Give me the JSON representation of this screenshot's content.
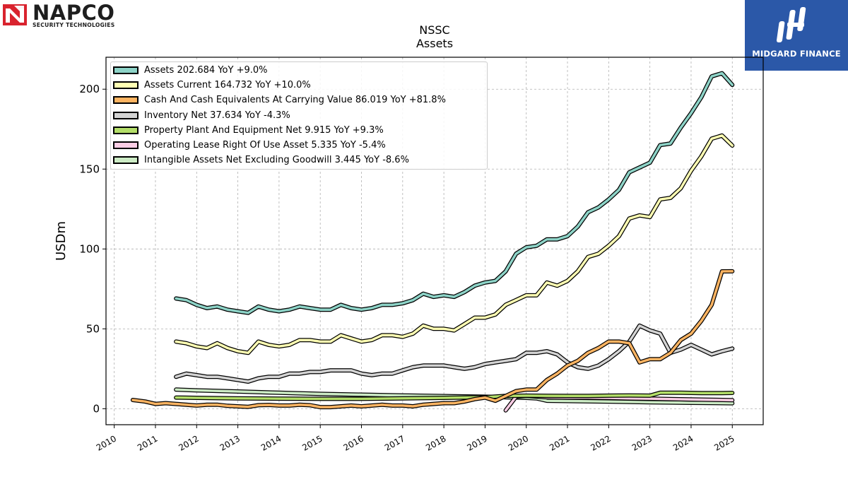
{
  "brand": {
    "name": "NAPCO",
    "subtitle": "SECURITY TECHNOLOGIES",
    "accent": "#d9232e"
  },
  "watermark": {
    "text": "MIDGARD FINANCE",
    "background": "#2b58a8"
  },
  "chart_data": {
    "type": "line",
    "title": "NSSC",
    "subtitle": "Assets",
    "xlabel": "",
    "ylabel": "USDm",
    "xlim": [
      2009.8,
      2025.75
    ],
    "ylim": [
      -10,
      220
    ],
    "xticks": [
      2010,
      2011,
      2012,
      2013,
      2014,
      2015,
      2016,
      2017,
      2018,
      2019,
      2020,
      2021,
      2022,
      2023,
      2024,
      2025
    ],
    "xtick_labels": [
      "2010",
      "2011",
      "2012",
      "2013",
      "2014",
      "2015",
      "2016",
      "2017",
      "2018",
      "2019",
      "2020",
      "2021",
      "2022",
      "2023",
      "2024",
      "2025"
    ],
    "yticks": [
      0,
      50,
      100,
      150,
      200
    ],
    "ytick_labels": [
      "0",
      "50",
      "100",
      "150",
      "200"
    ],
    "grid": true,
    "legend_position": "top-left",
    "series": [
      {
        "name": "Assets",
        "legend": "Assets  202.684 YoY +9.0%",
        "color": "#8dd3c7",
        "points": [
          [
            2011.5,
            69
          ],
          [
            2011.75,
            68
          ],
          [
            2012.0,
            65
          ],
          [
            2012.25,
            63
          ],
          [
            2012.5,
            64
          ],
          [
            2012.75,
            62
          ],
          [
            2013.0,
            61
          ],
          [
            2013.25,
            60
          ],
          [
            2013.5,
            64
          ],
          [
            2013.75,
            62
          ],
          [
            2014.0,
            61
          ],
          [
            2014.25,
            62
          ],
          [
            2014.5,
            64
          ],
          [
            2014.75,
            63
          ],
          [
            2015.0,
            62
          ],
          [
            2015.25,
            62
          ],
          [
            2015.5,
            65
          ],
          [
            2015.75,
            63
          ],
          [
            2016.0,
            62
          ],
          [
            2016.25,
            63
          ],
          [
            2016.5,
            65
          ],
          [
            2016.75,
            65
          ],
          [
            2017.0,
            66
          ],
          [
            2017.25,
            68
          ],
          [
            2017.5,
            72
          ],
          [
            2017.75,
            70
          ],
          [
            2018.0,
            71
          ],
          [
            2018.25,
            70
          ],
          [
            2018.5,
            73
          ],
          [
            2018.75,
            77
          ],
          [
            2019.0,
            79
          ],
          [
            2019.25,
            80
          ],
          [
            2019.5,
            86
          ],
          [
            2019.75,
            97
          ],
          [
            2020.0,
            101
          ],
          [
            2020.25,
            102
          ],
          [
            2020.5,
            106
          ],
          [
            2020.75,
            106
          ],
          [
            2021.0,
            108
          ],
          [
            2021.25,
            114
          ],
          [
            2021.5,
            123
          ],
          [
            2021.75,
            126
          ],
          [
            2022.0,
            131
          ],
          [
            2022.25,
            137
          ],
          [
            2022.5,
            148
          ],
          [
            2022.75,
            151
          ],
          [
            2023.0,
            154
          ],
          [
            2023.25,
            165
          ],
          [
            2023.5,
            166
          ],
          [
            2023.75,
            176
          ],
          [
            2024.0,
            185
          ],
          [
            2024.25,
            195
          ],
          [
            2024.5,
            208
          ],
          [
            2024.75,
            210
          ],
          [
            2025.0,
            202.684
          ]
        ]
      },
      {
        "name": "Assets Current",
        "legend": "Assets Current  164.732 YoY +10.0%",
        "color": "#ffffb3",
        "points": [
          [
            2011.5,
            42
          ],
          [
            2011.75,
            41
          ],
          [
            2012.0,
            39
          ],
          [
            2012.25,
            38
          ],
          [
            2012.5,
            41
          ],
          [
            2012.75,
            38
          ],
          [
            2013.0,
            36
          ],
          [
            2013.25,
            35
          ],
          [
            2013.5,
            42
          ],
          [
            2013.75,
            40
          ],
          [
            2014.0,
            39
          ],
          [
            2014.25,
            40
          ],
          [
            2014.5,
            43
          ],
          [
            2014.75,
            43
          ],
          [
            2015.0,
            42
          ],
          [
            2015.25,
            42
          ],
          [
            2015.5,
            46
          ],
          [
            2015.75,
            44
          ],
          [
            2016.0,
            42
          ],
          [
            2016.25,
            43
          ],
          [
            2016.5,
            46
          ],
          [
            2016.75,
            46
          ],
          [
            2017.0,
            45
          ],
          [
            2017.25,
            47
          ],
          [
            2017.5,
            52
          ],
          [
            2017.75,
            50
          ],
          [
            2018.0,
            50
          ],
          [
            2018.25,
            49
          ],
          [
            2018.5,
            53
          ],
          [
            2018.75,
            57
          ],
          [
            2019.0,
            57
          ],
          [
            2019.25,
            59
          ],
          [
            2019.5,
            65
          ],
          [
            2019.75,
            68
          ],
          [
            2020.0,
            71
          ],
          [
            2020.25,
            71
          ],
          [
            2020.5,
            79
          ],
          [
            2020.75,
            77
          ],
          [
            2021.0,
            80
          ],
          [
            2021.25,
            86
          ],
          [
            2021.5,
            95
          ],
          [
            2021.75,
            97
          ],
          [
            2022.0,
            102
          ],
          [
            2022.25,
            108
          ],
          [
            2022.5,
            119
          ],
          [
            2022.75,
            121
          ],
          [
            2023.0,
            120
          ],
          [
            2023.25,
            131
          ],
          [
            2023.5,
            132
          ],
          [
            2023.75,
            138
          ],
          [
            2024.0,
            149
          ],
          [
            2024.25,
            158
          ],
          [
            2024.5,
            169
          ],
          [
            2024.75,
            171
          ],
          [
            2025.0,
            164.732
          ]
        ]
      },
      {
        "name": "Cash And Cash Equivalents At Carrying Value",
        "legend": "Cash And Cash Equivalents At Carrying Value  86.019 YoY +81.8%",
        "color": "#fdb462",
        "points": [
          [
            2010.45,
            5.5
          ],
          [
            2010.75,
            4.5
          ],
          [
            2011.0,
            3
          ],
          [
            2011.25,
            3.5
          ],
          [
            2011.5,
            3
          ],
          [
            2011.75,
            2.5
          ],
          [
            2012.0,
            2
          ],
          [
            2012.25,
            2.5
          ],
          [
            2012.5,
            2.5
          ],
          [
            2012.75,
            1.8
          ],
          [
            2013.0,
            1.5
          ],
          [
            2013.25,
            1.2
          ],
          [
            2013.5,
            2.2
          ],
          [
            2013.75,
            2.4
          ],
          [
            2014.0,
            2
          ],
          [
            2014.25,
            2
          ],
          [
            2014.5,
            2.5
          ],
          [
            2014.75,
            2.2
          ],
          [
            2015.0,
            1
          ],
          [
            2015.25,
            1
          ],
          [
            2015.5,
            1.5
          ],
          [
            2015.75,
            2
          ],
          [
            2016.0,
            1.5
          ],
          [
            2016.25,
            2
          ],
          [
            2016.5,
            2.5
          ],
          [
            2016.75,
            2
          ],
          [
            2017.0,
            2
          ],
          [
            2017.25,
            1.5
          ],
          [
            2017.5,
            2.5
          ],
          [
            2017.75,
            3
          ],
          [
            2018.0,
            3.5
          ],
          [
            2018.25,
            3.5
          ],
          [
            2018.5,
            4.5
          ],
          [
            2018.75,
            6
          ],
          [
            2019.0,
            7
          ],
          [
            2019.25,
            5
          ],
          [
            2019.5,
            8
          ],
          [
            2019.75,
            11
          ],
          [
            2020.0,
            12
          ],
          [
            2020.25,
            12
          ],
          [
            2020.5,
            18
          ],
          [
            2020.75,
            22
          ],
          [
            2021.0,
            27
          ],
          [
            2021.25,
            30
          ],
          [
            2021.5,
            35
          ],
          [
            2021.75,
            38
          ],
          [
            2022.0,
            42
          ],
          [
            2022.25,
            42
          ],
          [
            2022.5,
            41
          ],
          [
            2022.75,
            29
          ],
          [
            2023.0,
            31
          ],
          [
            2023.25,
            31
          ],
          [
            2023.5,
            35
          ],
          [
            2023.75,
            43
          ],
          [
            2024.0,
            47
          ],
          [
            2024.25,
            55
          ],
          [
            2024.5,
            65
          ],
          [
            2024.75,
            86
          ],
          [
            2025.0,
            86.019
          ]
        ]
      },
      {
        "name": "Inventory Net",
        "legend": "Inventory Net  37.634 YoY -4.3%",
        "color": "#d3d3d3",
        "points": [
          [
            2011.5,
            20
          ],
          [
            2011.75,
            22
          ],
          [
            2012.0,
            21
          ],
          [
            2012.25,
            20
          ],
          [
            2012.5,
            20
          ],
          [
            2012.75,
            19
          ],
          [
            2013.0,
            18
          ],
          [
            2013.25,
            17
          ],
          [
            2013.5,
            19
          ],
          [
            2013.75,
            20
          ],
          [
            2014.0,
            20
          ],
          [
            2014.25,
            22
          ],
          [
            2014.5,
            22
          ],
          [
            2014.75,
            23
          ],
          [
            2015.0,
            23
          ],
          [
            2015.25,
            24
          ],
          [
            2015.5,
            24
          ],
          [
            2015.75,
            24
          ],
          [
            2016.0,
            22
          ],
          [
            2016.25,
            21
          ],
          [
            2016.5,
            22
          ],
          [
            2016.75,
            22
          ],
          [
            2017.0,
            24
          ],
          [
            2017.25,
            26
          ],
          [
            2017.5,
            27
          ],
          [
            2017.75,
            27
          ],
          [
            2018.0,
            27
          ],
          [
            2018.25,
            26
          ],
          [
            2018.5,
            25
          ],
          [
            2018.75,
            26
          ],
          [
            2019.0,
            28
          ],
          [
            2019.25,
            29
          ],
          [
            2019.5,
            30
          ],
          [
            2019.75,
            31
          ],
          [
            2020.0,
            35
          ],
          [
            2020.25,
            35
          ],
          [
            2020.5,
            36
          ],
          [
            2020.75,
            34
          ],
          [
            2021.0,
            29
          ],
          [
            2021.25,
            26
          ],
          [
            2021.5,
            25
          ],
          [
            2021.75,
            27
          ],
          [
            2022.0,
            31
          ],
          [
            2022.25,
            36
          ],
          [
            2022.5,
            42
          ],
          [
            2022.75,
            52
          ],
          [
            2023.0,
            49
          ],
          [
            2023.25,
            47
          ],
          [
            2023.5,
            35
          ],
          [
            2023.75,
            37
          ],
          [
            2024.0,
            40
          ],
          [
            2024.25,
            37
          ],
          [
            2024.5,
            34
          ],
          [
            2024.75,
            36
          ],
          [
            2025.0,
            37.634
          ]
        ]
      },
      {
        "name": "Property Plant And Equipment Net",
        "legend": "Property Plant And Equipment Net  9.915 YoY +9.3%",
        "color": "#b3de69",
        "points": [
          [
            2011.5,
            7
          ],
          [
            2012.0,
            6.8
          ],
          [
            2013.0,
            6.5
          ],
          [
            2014.0,
            6.3
          ],
          [
            2015.0,
            6.2
          ],
          [
            2016.0,
            6.2
          ],
          [
            2017.0,
            6.5
          ],
          [
            2018.0,
            6.8
          ],
          [
            2019.0,
            7.2
          ],
          [
            2019.5,
            8
          ],
          [
            2020.0,
            8.2
          ],
          [
            2020.5,
            8.1
          ],
          [
            2021.0,
            8
          ],
          [
            2021.5,
            8
          ],
          [
            2022.0,
            8.2
          ],
          [
            2022.5,
            8.3
          ],
          [
            2023.0,
            8.2
          ],
          [
            2023.25,
            10
          ],
          [
            2023.75,
            10
          ],
          [
            2024.25,
            9.8
          ],
          [
            2024.75,
            9.8
          ],
          [
            2025.0,
            9.915
          ]
        ]
      },
      {
        "name": "Operating Lease Right Of Use Asset",
        "legend": "Operating Lease Right Of Use Asset  5.335 YoY -5.4%",
        "color": "#fccde5",
        "points": [
          [
            2019.5,
            -1
          ],
          [
            2019.75,
            7.5
          ],
          [
            2020.0,
            8
          ],
          [
            2020.5,
            7.2
          ],
          [
            2021.0,
            7
          ],
          [
            2021.5,
            7
          ],
          [
            2022.0,
            6.8
          ],
          [
            2022.5,
            6.5
          ],
          [
            2023.0,
            6.3
          ],
          [
            2023.5,
            6
          ],
          [
            2024.0,
            5.8
          ],
          [
            2024.5,
            5.6
          ],
          [
            2025.0,
            5.335
          ]
        ]
      },
      {
        "name": "Intangible Assets Net Excluding Goodwill",
        "legend": "Intangible Assets Net Excluding Goodwill  3.445 YoY -8.6%",
        "color": "#ccebc5",
        "points": [
          [
            2011.5,
            12
          ],
          [
            2012.0,
            11.5
          ],
          [
            2013.0,
            10.8
          ],
          [
            2014.0,
            10
          ],
          [
            2015.0,
            9.3
          ],
          [
            2016.0,
            8.8
          ],
          [
            2017.0,
            8.3
          ],
          [
            2018.0,
            7.9
          ],
          [
            2019.0,
            7.5
          ],
          [
            2020.0,
            6.8
          ],
          [
            2020.25,
            6.5
          ],
          [
            2020.5,
            5
          ],
          [
            2021.0,
            4.8
          ],
          [
            2022.0,
            4.5
          ],
          [
            2023.0,
            4
          ],
          [
            2024.0,
            3.7
          ],
          [
            2025.0,
            3.445
          ]
        ]
      }
    ]
  }
}
